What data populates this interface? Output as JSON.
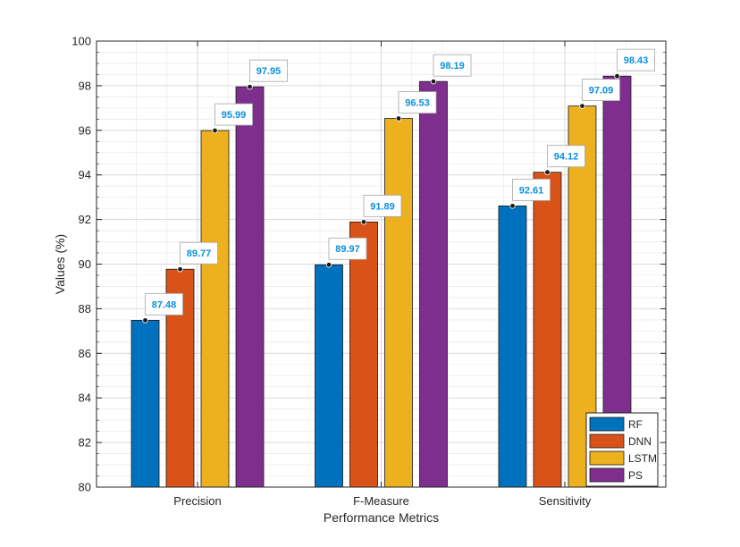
{
  "chart_data": {
    "type": "bar",
    "categories": [
      "Precision",
      "F-Measure",
      "Sensitivity"
    ],
    "series": [
      {
        "name": "RF",
        "color": "#0072bd",
        "values": [
          87.48,
          89.97,
          92.61
        ]
      },
      {
        "name": "DNN",
        "color": "#d95319",
        "values": [
          89.77,
          91.89,
          94.12
        ]
      },
      {
        "name": "LSTM",
        "color": "#edb120",
        "values": [
          95.99,
          96.53,
          97.09
        ]
      },
      {
        "name": "PS",
        "color": "#7e2f8e",
        "values": [
          97.95,
          98.19,
          98.43
        ]
      }
    ],
    "data_labels": [
      [
        "87.48",
        "89.97",
        "92.61"
      ],
      [
        "89.77",
        "91.89",
        "94.12"
      ],
      [
        "95.99",
        "96.53",
        "97.09"
      ],
      [
        "97.95",
        "98.19",
        "98.43"
      ]
    ],
    "yticks": [
      "80",
      "82",
      "84",
      "86",
      "88",
      "90",
      "92",
      "94",
      "96",
      "98",
      "100"
    ],
    "xlabel": "Performance Metrics",
    "ylabel": "Values (%)",
    "ylim": [
      80,
      100
    ],
    "minor_ytick_step": 0.5,
    "grid": true,
    "minor_grid": true,
    "legend_position": "bottom-right",
    "label_color": "#0a8fe0"
  }
}
